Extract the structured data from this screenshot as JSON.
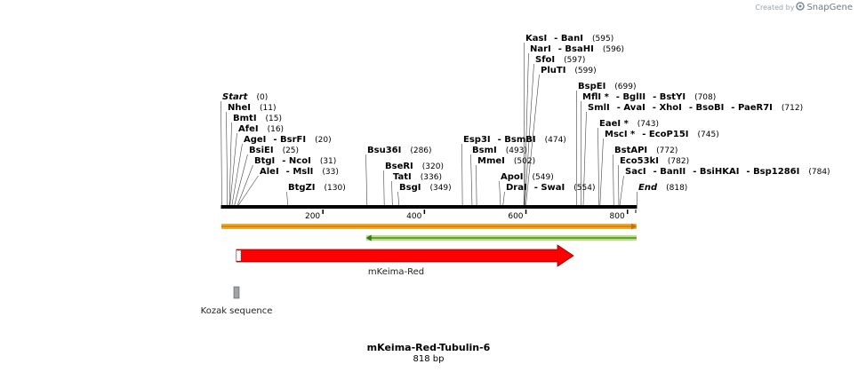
{
  "watermark": {
    "prefix": "Created by",
    "brand": "SnapGene"
  },
  "sequence": {
    "name": "mKeima-Red-Tubulin-6",
    "length_label": "818 bp",
    "length": 818
  },
  "axis": {
    "ticks": [
      200,
      400,
      600,
      800
    ]
  },
  "sites": [
    {
      "names": [
        "KasI",
        "BanI"
      ],
      "pos_label": "(595)",
      "pos": 595
    },
    {
      "names": [
        "NarI",
        "BsaHI"
      ],
      "pos_label": "(596)",
      "pos": 596
    },
    {
      "names": [
        "SfoI"
      ],
      "pos_label": "(597)",
      "pos": 597
    },
    {
      "names": [
        "PluTI"
      ],
      "pos_label": "(599)",
      "pos": 599
    },
    {
      "names": [
        "BspEI"
      ],
      "pos_label": "(699)",
      "pos": 699
    },
    {
      "names": [
        "MflI *",
        "BglII",
        "BstYI"
      ],
      "pos_label": "(708)",
      "pos": 708
    },
    {
      "names": [
        "SmlI",
        "AvaI",
        "XhoI",
        "BsoBI",
        "PaeR7I"
      ],
      "pos_label": "(712)",
      "pos": 712
    },
    {
      "names": [
        "Start"
      ],
      "pos_label": "(0)",
      "pos": 0,
      "italic": true
    },
    {
      "names": [
        "NheI"
      ],
      "pos_label": "(11)",
      "pos": 11
    },
    {
      "names": [
        "BmtI"
      ],
      "pos_label": "(15)",
      "pos": 15
    },
    {
      "names": [
        "AfeI"
      ],
      "pos_label": "(16)",
      "pos": 16
    },
    {
      "names": [
        "EaeI *"
      ],
      "pos_label": "(743)",
      "pos": 743
    },
    {
      "names": [
        "AgeI",
        "BsrFI"
      ],
      "pos_label": "(20)",
      "pos": 20
    },
    {
      "names": [
        "MscI *",
        "EcoP15I"
      ],
      "pos_label": "(745)",
      "pos": 745
    },
    {
      "names": [
        "Esp3I",
        "BsmBI"
      ],
      "pos_label": "(474)",
      "pos": 474
    },
    {
      "names": [
        "BsiEI"
      ],
      "pos_label": "(25)",
      "pos": 25
    },
    {
      "names": [
        "Bsu36I"
      ],
      "pos_label": "(286)",
      "pos": 286
    },
    {
      "names": [
        "BsmI"
      ],
      "pos_label": "(493)",
      "pos": 493
    },
    {
      "names": [
        "BstAPI"
      ],
      "pos_label": "(772)",
      "pos": 772
    },
    {
      "names": [
        "BtgI",
        "NcoI"
      ],
      "pos_label": "(31)",
      "pos": 31
    },
    {
      "names": [
        "MmeI"
      ],
      "pos_label": "(502)",
      "pos": 502
    },
    {
      "names": [
        "Eco53kI"
      ],
      "pos_label": "(782)",
      "pos": 782
    },
    {
      "names": [
        "AleI",
        "MslI"
      ],
      "pos_label": "(33)",
      "pos": 33
    },
    {
      "names": [
        "BseRI"
      ],
      "pos_label": "(320)",
      "pos": 320
    },
    {
      "names": [
        "SacI",
        "BanII",
        "BsiHKAI",
        "Bsp1286I"
      ],
      "pos_label": "(784)",
      "pos": 784
    },
    {
      "names": [
        "TatI"
      ],
      "pos_label": "(336)",
      "pos": 336
    },
    {
      "names": [
        "ApoI"
      ],
      "pos_label": "(549)",
      "pos": 549
    },
    {
      "names": [
        "BtgZI"
      ],
      "pos_label": "(130)",
      "pos": 130
    },
    {
      "names": [
        "BsgI"
      ],
      "pos_label": "(349)",
      "pos": 349
    },
    {
      "names": [
        "DraI",
        "SwaI"
      ],
      "pos_label": "(554)",
      "pos": 554
    },
    {
      "names": [
        "End"
      ],
      "pos_label": "(818)",
      "pos": 818,
      "italic": true
    }
  ],
  "features": [
    {
      "name": "",
      "type": "line-forward",
      "start": 1,
      "end": 818,
      "color": "#f5a623",
      "line": "#b07a1a"
    },
    {
      "name": "",
      "type": "line-reverse",
      "start": 286,
      "end": 818,
      "color": "#b8e07a",
      "line": "#2d7a1e"
    },
    {
      "name": "mKeima-Red",
      "type": "arrow",
      "start": 31,
      "end": 702,
      "color": "#ff0000"
    },
    {
      "name": "Kozak sequence",
      "type": "box",
      "start": 25,
      "end": 33,
      "color": "#a0a4a8"
    }
  ]
}
